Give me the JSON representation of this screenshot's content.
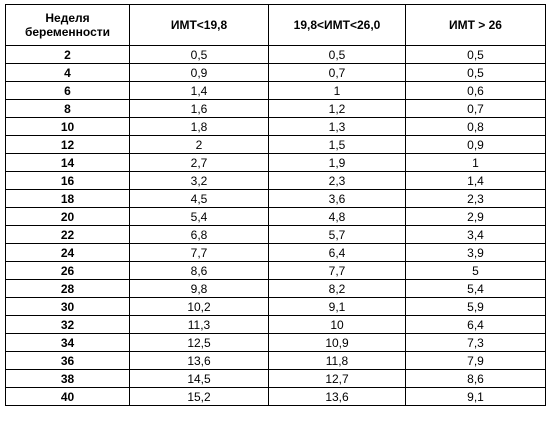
{
  "table": {
    "headers": [
      "Неделя беременности",
      "ИМТ<19,8",
      "19,8<ИМТ<26,0",
      "ИМТ > 26"
    ],
    "rows": [
      [
        "2",
        "0,5",
        "0,5",
        "0,5"
      ],
      [
        "4",
        "0,9",
        "0,7",
        "0,5"
      ],
      [
        "6",
        "1,4",
        "1",
        "0,6"
      ],
      [
        "8",
        "1,6",
        "1,2",
        "0,7"
      ],
      [
        "10",
        "1,8",
        "1,3",
        "0,8"
      ],
      [
        "12",
        "2",
        "1,5",
        "0,9"
      ],
      [
        "14",
        "2,7",
        "1,9",
        "1"
      ],
      [
        "16",
        "3,2",
        "2,3",
        "1,4"
      ],
      [
        "18",
        "4,5",
        "3,6",
        "2,3"
      ],
      [
        "20",
        "5,4",
        "4,8",
        "2,9"
      ],
      [
        "22",
        "6,8",
        "5,7",
        "3,4"
      ],
      [
        "24",
        "7,7",
        "6,4",
        "3,9"
      ],
      [
        "26",
        "8,6",
        "7,7",
        "5"
      ],
      [
        "28",
        "9,8",
        "8,2",
        "5,4"
      ],
      [
        "30",
        "10,2",
        "9,1",
        "5,9"
      ],
      [
        "32",
        "11,3",
        "10",
        "6,4"
      ],
      [
        "34",
        "12,5",
        "10,9",
        "7,3"
      ],
      [
        "36",
        "13,6",
        "11,8",
        "7,9"
      ],
      [
        "38",
        "14,5",
        "12,7",
        "8,6"
      ],
      [
        "40",
        "15,2",
        "13,6",
        "9,1"
      ]
    ]
  }
}
